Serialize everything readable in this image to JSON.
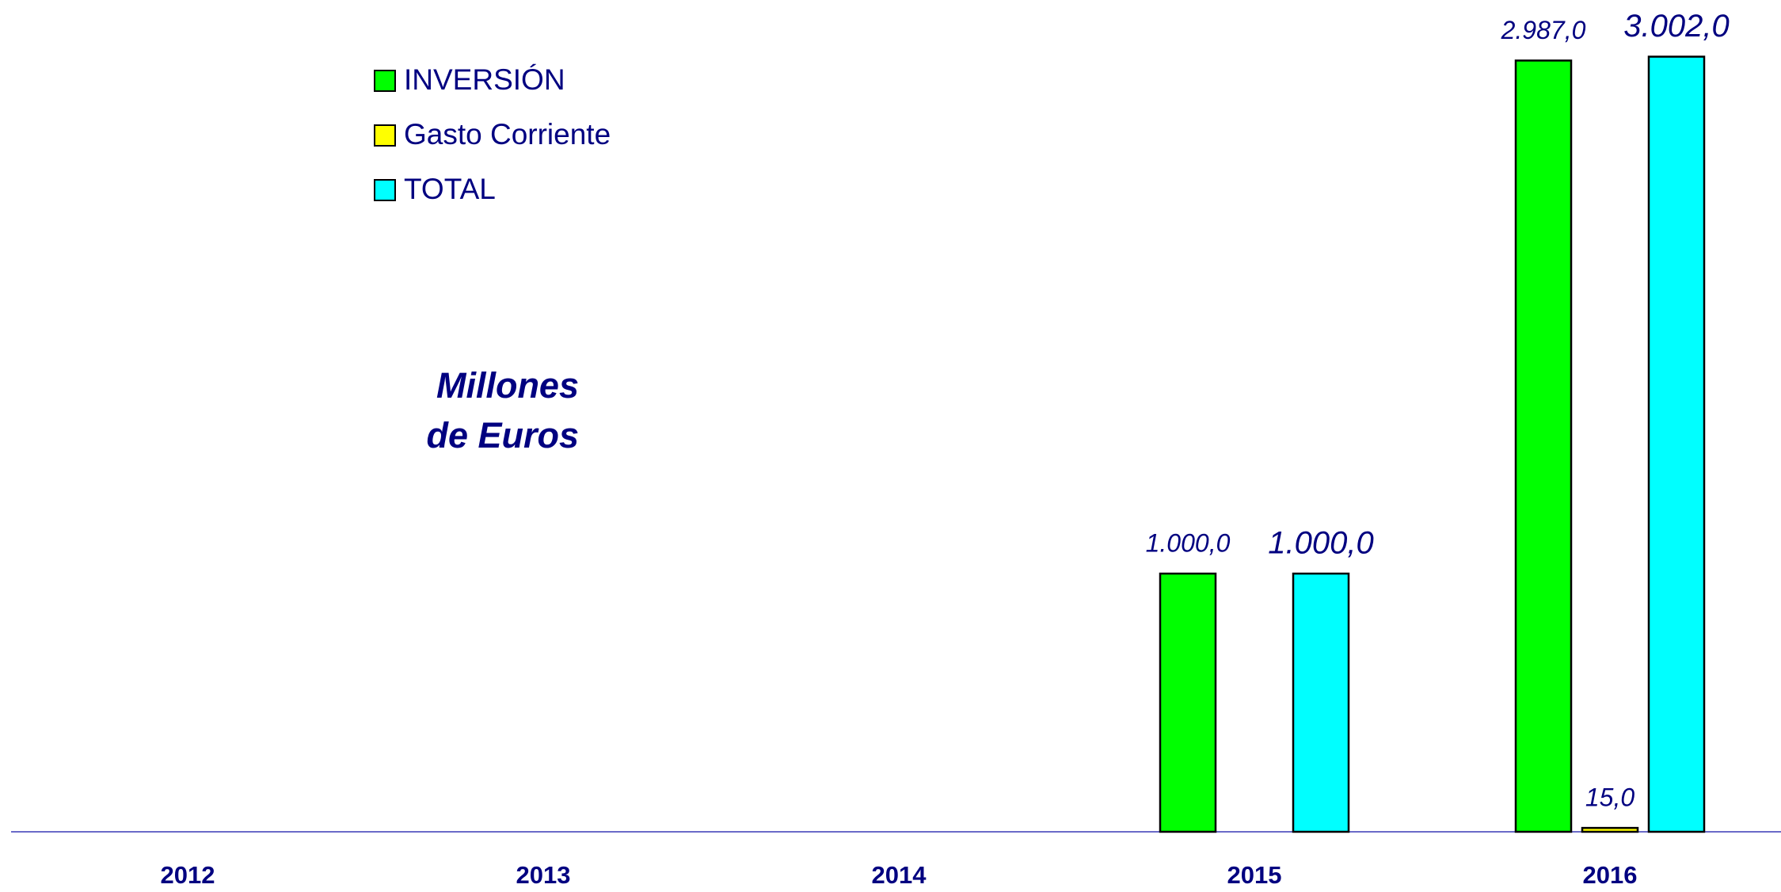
{
  "chart_data": {
    "type": "bar",
    "annotations": [
      "Millones",
      "de Euros"
    ],
    "categories": [
      "2012",
      "2013",
      "2014",
      "2015",
      "2016"
    ],
    "series": [
      {
        "name": "INVERSIÓN",
        "color": "#00ff00",
        "values": [
          null,
          null,
          null,
          1000,
          2987
        ],
        "value_labels": [
          null,
          null,
          null,
          "1.000,0",
          "2.987,0"
        ]
      },
      {
        "name": "Gasto Corriente",
        "color": "#ffff00",
        "values": [
          null,
          null,
          null,
          null,
          15
        ],
        "value_labels": [
          null,
          null,
          null,
          null,
          "15,0"
        ]
      },
      {
        "name": "TOTAL",
        "color": "#00ffff",
        "values": [
          null,
          null,
          null,
          1000,
          3002
        ],
        "value_labels": [
          null,
          null,
          null,
          "1.000,0",
          "3.002,0"
        ]
      }
    ],
    "ylim": [
      0,
      3200
    ]
  }
}
